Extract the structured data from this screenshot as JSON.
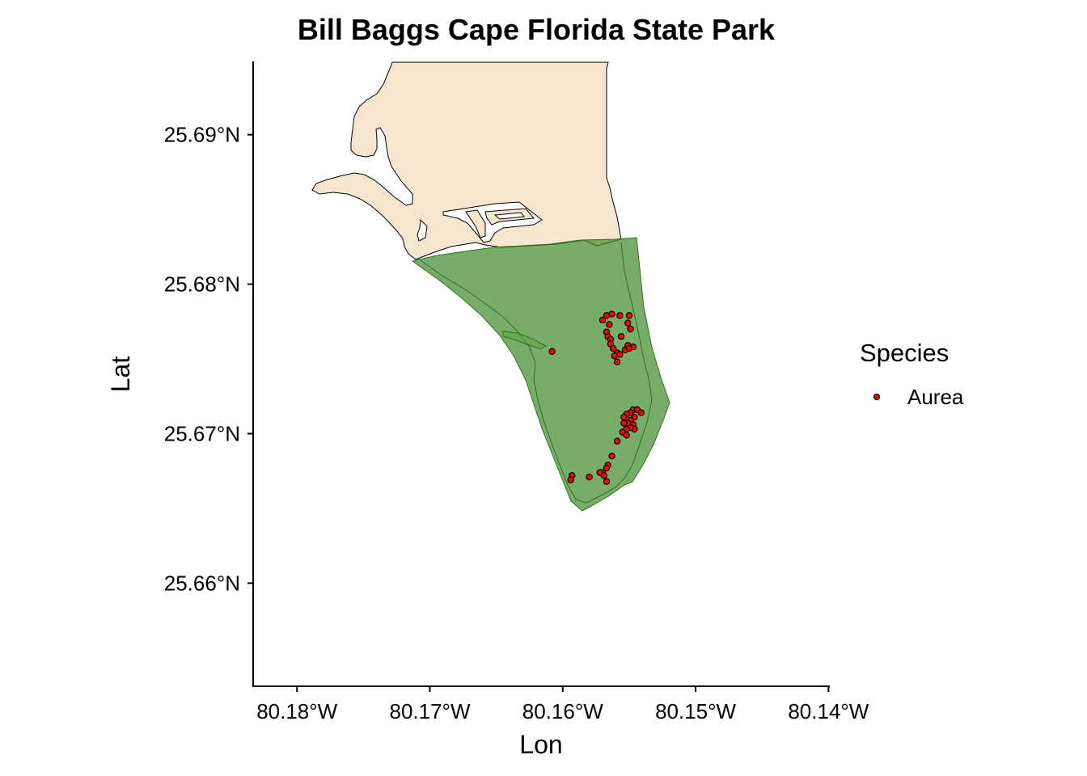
{
  "title": "Bill Baggs Cape Florida State Park",
  "x_axis": {
    "label": "Lon",
    "ticks": [
      "80.18°W",
      "80.17°W",
      "80.16°W",
      "80.15°W",
      "80.14°W"
    ],
    "tick_values": [
      -80.18,
      -80.17,
      -80.16,
      -80.15,
      -80.14
    ]
  },
  "y_axis": {
    "label": "Lat",
    "ticks": [
      "25.69°N",
      "25.68°N",
      "25.67°N",
      "25.66°N"
    ],
    "tick_values": [
      25.69,
      25.68,
      25.67,
      25.66
    ]
  },
  "legend": {
    "title": "Species",
    "entries": [
      {
        "label": "Aurea",
        "color": "#ff0000"
      }
    ]
  },
  "colors": {
    "land": "#f7e6cf",
    "park": "#3f8a2a",
    "point_fill": "#ff0000",
    "point_stroke": "#000000"
  },
  "chart_data": {
    "type": "scatter",
    "title": "Bill Baggs Cape Florida State Park",
    "xlabel": "Lon",
    "ylabel": "Lat",
    "xlim": [
      -80.1833,
      -80.1399
    ],
    "ylim": [
      25.6531,
      25.6949
    ],
    "grid": false,
    "legend_position": "right",
    "series": [
      {
        "name": "Aurea",
        "points": [
          [
            -80.1567,
            25.6779
          ],
          [
            -80.1563,
            25.678
          ],
          [
            -80.157,
            25.6776
          ],
          [
            -80.155,
            25.6779
          ],
          [
            -80.1557,
            25.6779
          ],
          [
            -80.1551,
            25.6774
          ],
          [
            -80.1549,
            25.677
          ],
          [
            -80.1565,
            25.6773
          ],
          [
            -80.1567,
            25.6768
          ],
          [
            -80.1566,
            25.6765
          ],
          [
            -80.1564,
            25.6763
          ],
          [
            -80.1556,
            25.6765
          ],
          [
            -80.1564,
            25.676
          ],
          [
            -80.1562,
            25.6757
          ],
          [
            -80.1559,
            25.6754
          ],
          [
            -80.1561,
            25.6752
          ],
          [
            -80.1559,
            25.6748
          ],
          [
            -80.1557,
            25.6753
          ],
          [
            -80.1553,
            25.6756
          ],
          [
            -80.1551,
            25.6759
          ],
          [
            -80.1547,
            25.6758
          ],
          [
            -80.155,
            25.6757
          ],
          [
            -80.1608,
            25.6755
          ],
          [
            -80.1547,
            25.6716
          ],
          [
            -80.1544,
            25.6716
          ],
          [
            -80.1549,
            25.6714
          ],
          [
            -80.1552,
            25.6713
          ],
          [
            -80.1554,
            25.6711
          ],
          [
            -80.1541,
            25.6714
          ],
          [
            -80.1546,
            25.6711
          ],
          [
            -80.1549,
            25.6709
          ],
          [
            -80.1551,
            25.6707
          ],
          [
            -80.1554,
            25.6707
          ],
          [
            -80.1547,
            25.6706
          ],
          [
            -80.1546,
            25.6703
          ],
          [
            -80.1549,
            25.6704
          ],
          [
            -80.1552,
            25.6703
          ],
          [
            -80.1555,
            25.6701
          ],
          [
            -80.1552,
            25.6699
          ],
          [
            -80.1559,
            25.6695
          ],
          [
            -80.1563,
            25.6685
          ],
          [
            -80.1566,
            25.6679
          ],
          [
            -80.1567,
            25.6677
          ],
          [
            -80.157,
            25.6674
          ],
          [
            -80.1572,
            25.6674
          ],
          [
            -80.1569,
            25.6672
          ],
          [
            -80.1567,
            25.6668
          ],
          [
            -80.158,
            25.6671
          ],
          [
            -80.1593,
            25.6672
          ],
          [
            -80.1594,
            25.6669
          ]
        ]
      }
    ]
  }
}
